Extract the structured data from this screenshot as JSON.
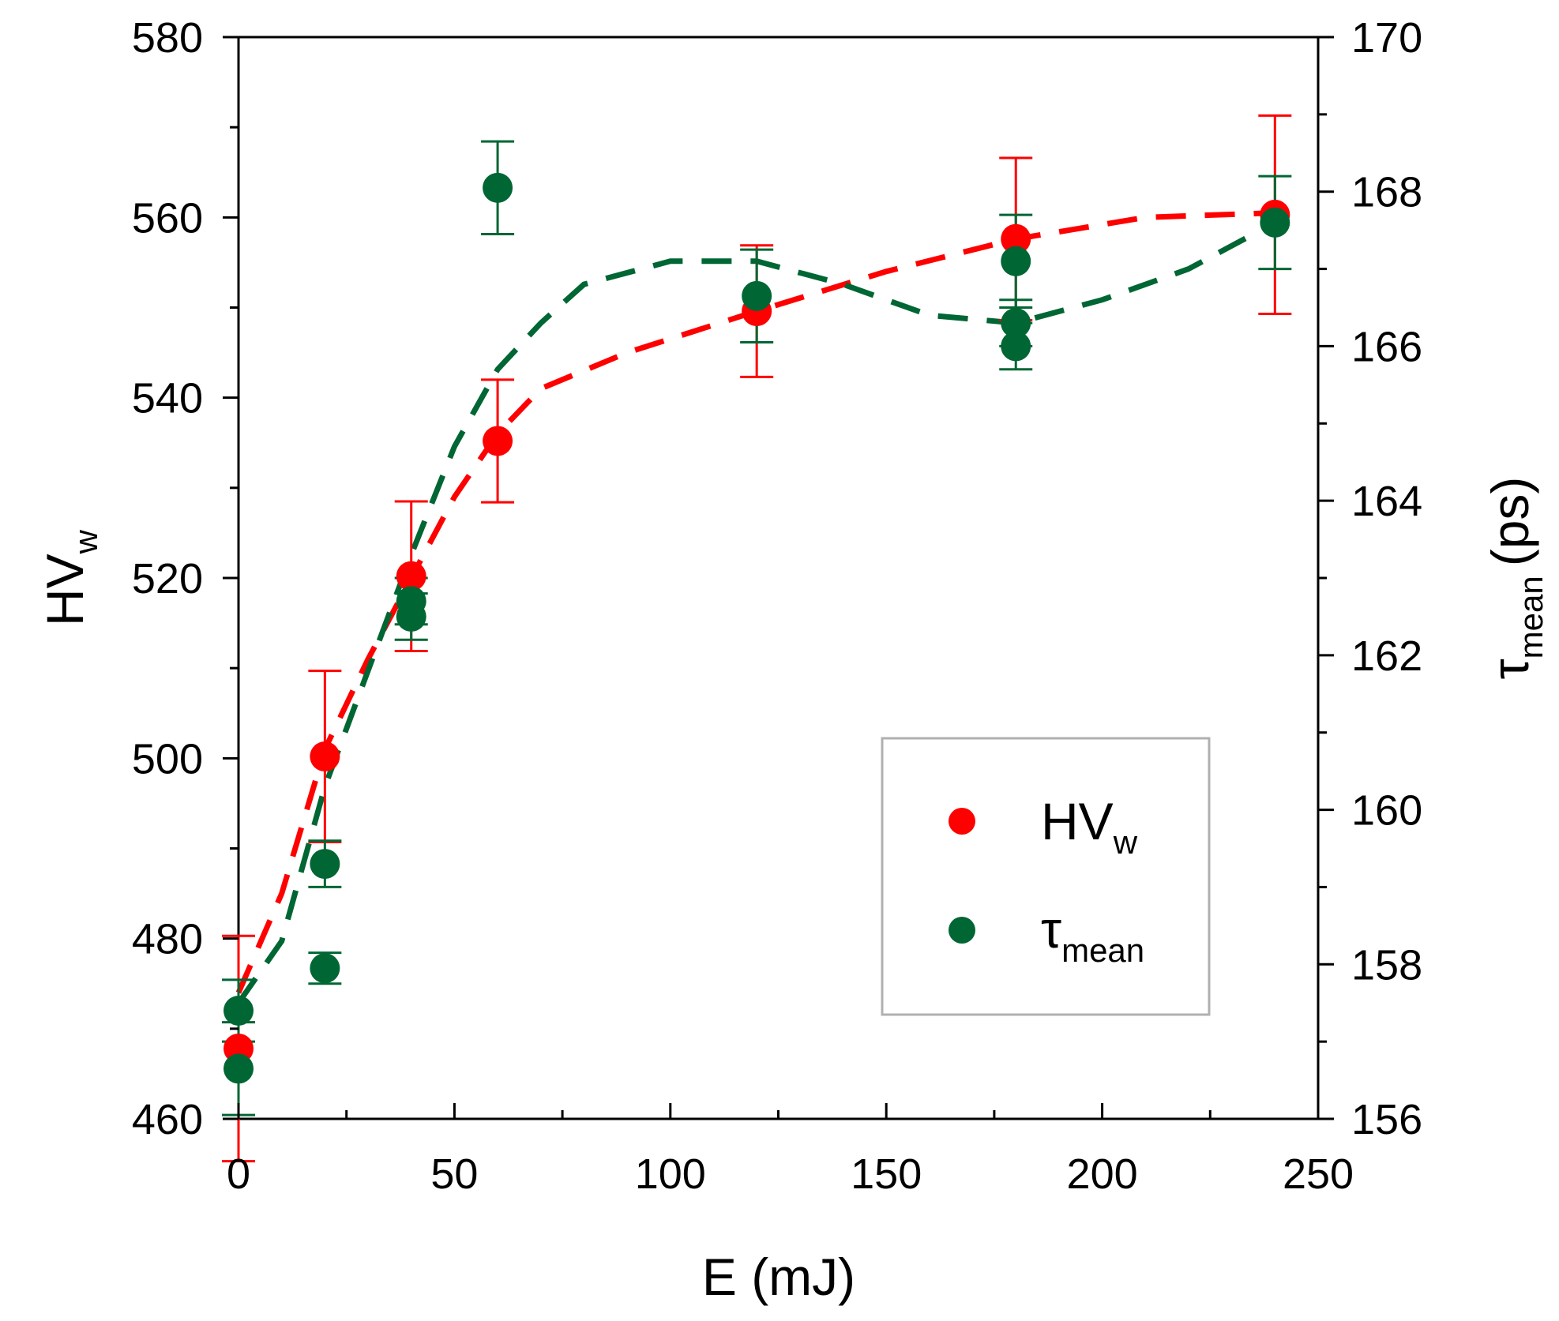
{
  "chart_data": {
    "type": "scatter",
    "xlabel": "E (mJ)",
    "ylabel_left": {
      "base": "HV",
      "sub": "w"
    },
    "ylabel_right": {
      "base": "τ",
      "sub": "mean",
      "unit": "(ps)"
    },
    "xlim": [
      0,
      250
    ],
    "ylim_left": [
      460,
      580
    ],
    "ylim_right": [
      156,
      170
    ],
    "x_ticks": [
      "0",
      "50",
      "100",
      "150",
      "200",
      "250"
    ],
    "y_left_ticks": [
      "460",
      "480",
      "500",
      "520",
      "540",
      "560",
      "580"
    ],
    "y_right_ticks": [
      "156",
      "158",
      "160",
      "162",
      "164",
      "166",
      "168",
      "170"
    ],
    "legend": {
      "position": "lower-right",
      "entries": [
        {
          "base": "HV",
          "sub": "w",
          "color": "#ff0000"
        },
        {
          "base": "τ",
          "sub": "mean",
          "color": "#006633"
        }
      ]
    },
    "series": [
      {
        "name": "HV_w",
        "axis": "left",
        "color": "#ff0000",
        "points": [
          {
            "x": 0,
            "y": 467.8,
            "err": 12.5
          },
          {
            "x": 20,
            "y": 500.2,
            "err": 9.5
          },
          {
            "x": 40,
            "y": 520.2,
            "err": 8.3
          },
          {
            "x": 60,
            "y": 535.2,
            "err": 6.8
          },
          {
            "x": 120,
            "y": 549.6,
            "err": 7.3
          },
          {
            "x": 180,
            "y": 557.6,
            "err": 9.0
          },
          {
            "x": 240,
            "y": 560.3,
            "err": 11.0
          }
        ],
        "trend": [
          [
            0,
            474
          ],
          [
            10,
            485
          ],
          [
            20,
            501
          ],
          [
            30,
            511
          ],
          [
            40,
            520
          ],
          [
            50,
            529
          ],
          [
            60,
            536
          ],
          [
            70,
            541
          ],
          [
            90,
            545
          ],
          [
            120,
            549.6
          ],
          [
            150,
            554
          ],
          [
            180,
            557.6
          ],
          [
            210,
            560
          ],
          [
            240,
            560.5
          ]
        ]
      },
      {
        "name": "τ_mean",
        "axis": "right",
        "color": "#006633",
        "points": [
          {
            "x": 0,
            "y": 157.4,
            "err": 0.4
          },
          {
            "x": 0,
            "y": 156.65,
            "err": 0.6
          },
          {
            "x": 20,
            "y": 159.3,
            "err": 0.3
          },
          {
            "x": 20,
            "y": 157.95,
            "err": 0.2
          },
          {
            "x": 40,
            "y": 162.7,
            "err": 0.3
          },
          {
            "x": 40,
            "y": 162.5,
            "err": 0.3
          },
          {
            "x": 60,
            "y": 168.05,
            "err": 0.6
          },
          {
            "x": 120,
            "y": 166.65,
            "err": 0.6
          },
          {
            "x": 180,
            "y": 167.1,
            "err": 0.6
          },
          {
            "x": 180,
            "y": 166.3,
            "err": 0.3
          },
          {
            "x": 180,
            "y": 166.0,
            "err": 0.3
          },
          {
            "x": 240,
            "y": 167.6,
            "err": 0.6
          }
        ],
        "trend": [
          [
            0,
            157.5
          ],
          [
            10,
            158.3
          ],
          [
            20,
            160.3
          ],
          [
            30,
            161.8
          ],
          [
            40,
            163.3
          ],
          [
            50,
            164.7
          ],
          [
            60,
            165.7
          ],
          [
            70,
            166.3
          ],
          [
            80,
            166.8
          ],
          [
            100,
            167.1
          ],
          [
            120,
            167.1
          ],
          [
            140,
            166.8
          ],
          [
            160,
            166.4
          ],
          [
            180,
            166.3
          ],
          [
            200,
            166.6
          ],
          [
            220,
            167.0
          ],
          [
            240,
            167.6
          ]
        ]
      }
    ]
  }
}
